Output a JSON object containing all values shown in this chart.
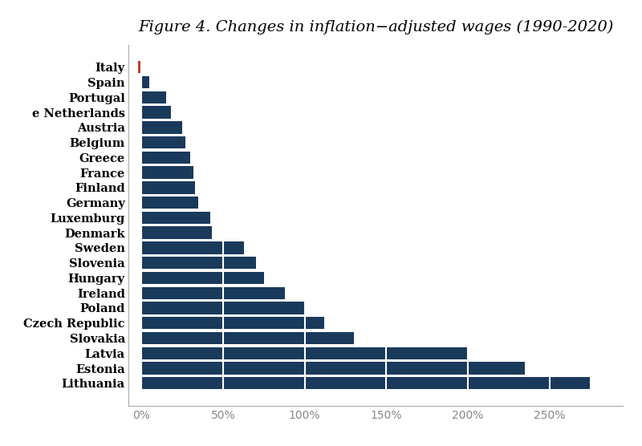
{
  "title": "Figure 4. Changes in inflation−adjusted wages (1990-2020)",
  "countries": [
    "Italy",
    "Spain",
    "Portugal",
    "e Netherlands",
    "Austria",
    "Belgium",
    "Greece",
    "France",
    "Finland",
    "Germany",
    "Luxemburg",
    "Denmark",
    "Sweden",
    "Slovenia",
    "Hungary",
    "Ireland",
    "Poland",
    "Czech Republic",
    "Slovakia",
    "Latvia",
    "Estonia",
    "Lithuania"
  ],
  "values": [
    -2,
    5,
    15,
    18,
    25,
    27,
    30,
    32,
    33,
    35,
    42,
    43,
    63,
    70,
    75,
    88,
    100,
    112,
    130,
    200,
    235,
    275
  ],
  "bar_color_main": "#1a3a5c",
  "bar_color_italy": "#c0392b",
  "background_color": "#ffffff",
  "xlim": [
    -8,
    295
  ],
  "xticks": [
    0,
    50,
    100,
    150,
    200,
    250
  ],
  "xticklabels": [
    "0%",
    "50%",
    "100%",
    "150%",
    "200%",
    "250%"
  ],
  "title_fontsize": 14,
  "label_fontsize": 10.5,
  "tick_fontsize": 10
}
